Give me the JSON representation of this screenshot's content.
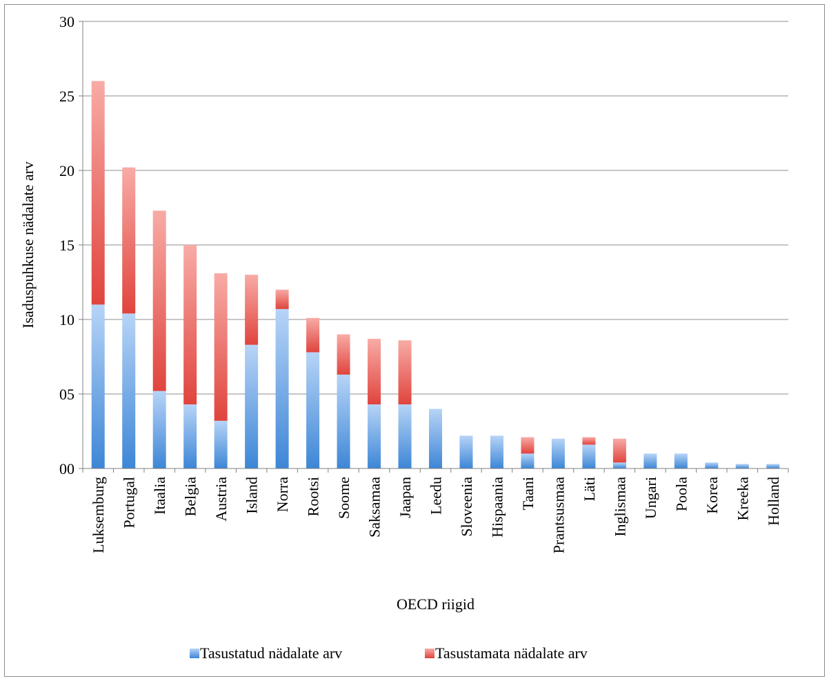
{
  "chart_data": {
    "type": "bar",
    "stacked": true,
    "title": "",
    "xlabel": "OECD riigid",
    "ylabel": "Isaduspuhkuse nädalate arv",
    "ylim": [
      0,
      30
    ],
    "yticks": [
      0,
      5,
      10,
      15,
      20,
      25,
      30
    ],
    "ytick_labels": [
      "00",
      "05",
      "10",
      "15",
      "20",
      "25",
      "30"
    ],
    "grid": true,
    "legend_position": "bottom",
    "categories": [
      "Luksemburg",
      "Portugal",
      "Itaalia",
      "Belgia",
      "Austria",
      "Island",
      "Norra",
      "Rootsi",
      "Soome",
      "Saksamaa",
      "Jaapan",
      "Leedu",
      "Sloveenia",
      "Hispaania",
      "Taani",
      "Prantsusmaa",
      "Läti",
      "Inglismaa",
      "Ungari",
      "Poola",
      "Korea",
      "Kreeka",
      "Holland"
    ],
    "series": [
      {
        "name": "Tasustatud nädalate arv",
        "color": "#4a90d9",
        "values": [
          11.0,
          10.4,
          5.2,
          4.3,
          3.2,
          8.3,
          10.7,
          7.8,
          6.3,
          4.3,
          4.3,
          4.0,
          2.2,
          2.2,
          1.0,
          2.0,
          1.6,
          0.4,
          1.0,
          1.0,
          0.4,
          0.3,
          0.3
        ]
      },
      {
        "name": "Tasustamata nädalate arv",
        "color": "#e2554f",
        "values": [
          15.0,
          9.8,
          12.1,
          10.7,
          9.9,
          4.7,
          1.3,
          2.3,
          2.7,
          4.4,
          4.3,
          0.0,
          0.0,
          0.0,
          1.1,
          0.0,
          0.5,
          1.6,
          0.0,
          0.0,
          0.0,
          0.0,
          0.0
        ]
      }
    ]
  }
}
